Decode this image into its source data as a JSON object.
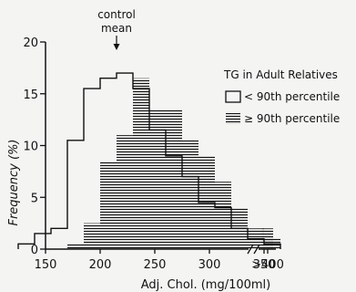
{
  "chart_data": {
    "type": "bar",
    "xlabel": "Adj. Chol. (mg/100ml)",
    "ylabel": "Frequency (%)",
    "ylim": [
      0,
      20
    ],
    "yticks": [
      0,
      5,
      10,
      15,
      20
    ],
    "xticks": [
      150,
      200,
      250,
      300,
      350
    ],
    "overflow_tick": ">400",
    "legend": {
      "title": "TG in Adult Relatives",
      "placement": "right",
      "entries": [
        "< 90th percentile",
        "≥ 90th percentile"
      ]
    },
    "annotations": [
      {
        "text_lines": [
          "control",
          "mean"
        ],
        "x": 215
      }
    ],
    "series": [
      {
        "name": "< 90th percentile",
        "style": "outline",
        "bin_edges": [
          125,
          140,
          155,
          170,
          185,
          200,
          215,
          230,
          245,
          260,
          275,
          290,
          305,
          320,
          335,
          350,
          365
        ],
        "values": [
          0.5,
          1.5,
          2.0,
          10.5,
          15.5,
          16.5,
          17.0,
          15.5,
          11.5,
          9.0,
          7.0,
          4.5,
          4.0,
          2.0,
          1.0,
          0.5
        ],
        "overflow_value": 0
      },
      {
        "name": "≥ 90th percentile",
        "style": "hatched",
        "bin_edges": [
          170,
          185,
          200,
          215,
          230,
          245,
          260,
          275,
          290,
          305,
          320,
          335,
          350,
          365
        ],
        "values": [
          0.5,
          2.5,
          8.5,
          11.0,
          16.5,
          13.5,
          13.5,
          10.5,
          9.0,
          6.5,
          4.0,
          2.0,
          1.0
        ],
        "overflow_value": 2.0
      }
    ]
  }
}
